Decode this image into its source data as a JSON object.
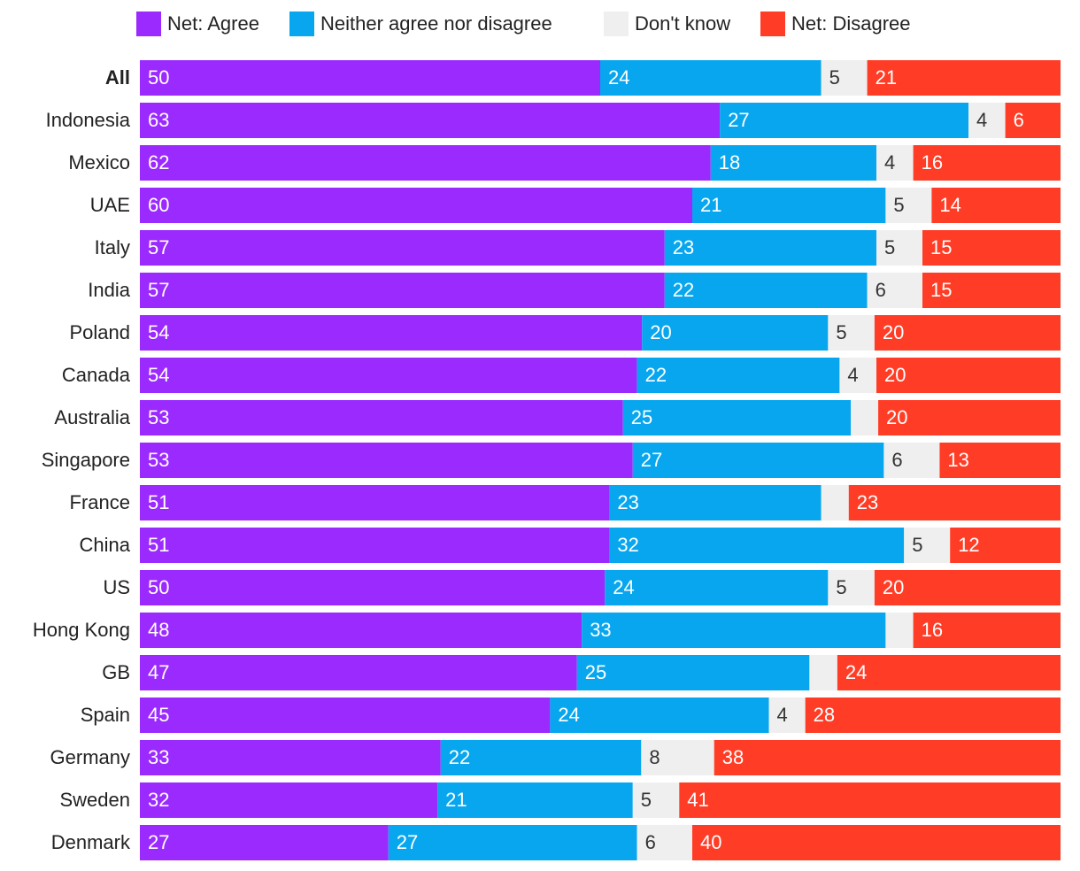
{
  "chart_data": {
    "type": "bar",
    "orientation": "horizontal",
    "stacked": true,
    "legend_position": "top",
    "categories": [
      "All",
      "Indonesia",
      "Mexico",
      "UAE",
      "Italy",
      "India",
      "Poland",
      "Canada",
      "Australia",
      "Singapore",
      "France",
      "China",
      "US",
      "Hong Kong",
      "GB",
      "Spain",
      "Germany",
      "Sweden",
      "Denmark"
    ],
    "bold_categories": [
      "All"
    ],
    "series": [
      {
        "name": "Net: Agree",
        "color": "#9b2aff",
        "text_color": "#ffffff",
        "values": [
          50,
          63,
          62,
          60,
          57,
          57,
          54,
          54,
          53,
          53,
          51,
          51,
          50,
          48,
          47,
          45,
          33,
          32,
          27
        ],
        "labels": [
          "50",
          "63",
          "62",
          "60",
          "57",
          "57",
          "54",
          "54",
          "53",
          "53",
          "51",
          "51",
          "50",
          "48",
          "47",
          "45",
          "33",
          "32",
          "27"
        ]
      },
      {
        "name": "Neither agree nor disagree",
        "color": "#07a6ee",
        "text_color": "#ffffff",
        "values": [
          24,
          27,
          18,
          21,
          23,
          22,
          20,
          22,
          25,
          27,
          23,
          32,
          24,
          33,
          25,
          24,
          22,
          21,
          27
        ],
        "labels": [
          "24",
          "27",
          "18",
          "21",
          "23",
          "22",
          "20",
          "22",
          "25",
          "27",
          "23",
          "32",
          "24",
          "33",
          "25",
          "24",
          "22",
          "21",
          "27"
        ]
      },
      {
        "name": "Don't know",
        "color": "#efefef",
        "text_color": "#333333",
        "values": [
          5,
          4,
          4,
          5,
          5,
          6,
          5,
          4,
          3,
          6,
          3,
          5,
          5,
          3,
          3,
          4,
          8,
          5,
          6
        ],
        "labels": [
          "5",
          "4",
          "4",
          "5",
          "5",
          "6",
          "5",
          "4",
          "",
          "6",
          "",
          "5",
          "5",
          "",
          "",
          "4",
          "8",
          "5",
          "6"
        ]
      },
      {
        "name": "Net: Disagree",
        "color": "#ff3d26",
        "text_color": "#ffffff",
        "values": [
          21,
          6,
          16,
          14,
          15,
          15,
          20,
          20,
          20,
          13,
          23,
          12,
          20,
          16,
          24,
          28,
          38,
          41,
          40
        ],
        "labels": [
          "21",
          "6",
          "16",
          "14",
          "15",
          "15",
          "20",
          "20",
          "20",
          "13",
          "23",
          "12",
          "20",
          "16",
          "24",
          "28",
          "38",
          "41",
          "40"
        ]
      }
    ],
    "title": "",
    "xlabel": "",
    "ylabel": "",
    "xlim": [
      0,
      100
    ],
    "grid": false
  }
}
